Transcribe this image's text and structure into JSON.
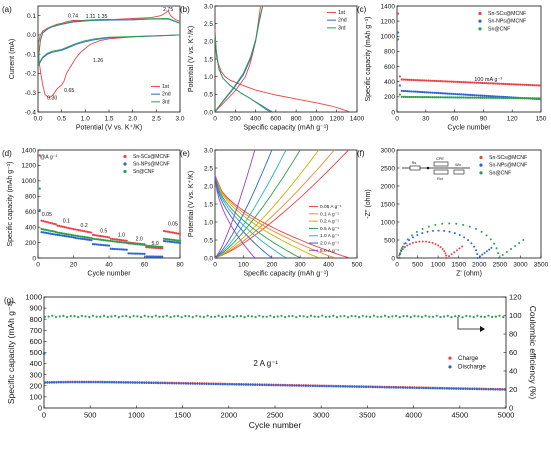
{
  "colors": {
    "red": "#e8434b",
    "blue": "#2f64d6",
    "green": "#2e9e4f",
    "gray": "#555555"
  },
  "chart_data": [
    {
      "panel": "(a)",
      "type": "line",
      "xlabel": "Potential (V vs. K⁺/K)",
      "ylabel": "Current (mA)",
      "xlim": [
        0,
        3
      ],
      "ylim": [
        -0.4,
        0.15
      ],
      "xticks": [
        0,
        0.5,
        1.0,
        1.5,
        2.0,
        2.5,
        3.0
      ],
      "yticks": [
        -0.4,
        -0.3,
        -0.2,
        -0.1,
        0.0,
        0.1
      ],
      "xtick_labels": [
        "0.0",
        "0.5",
        "1.0",
        "1.5",
        "2.0",
        "2.5",
        "3.0"
      ],
      "ytick_labels": [
        "-0.4",
        "-0.3",
        "-0.2",
        "-0.1",
        "0.0",
        "0.1"
      ],
      "legend": {
        "position": "bottom-right",
        "entries": [
          "1st",
          "2nd",
          "3rd"
        ]
      },
      "annotations": [
        {
          "text": "0.30",
          "x": 0.3,
          "y": -0.335
        },
        {
          "text": "0.65",
          "x": 0.66,
          "y": -0.295
        },
        {
          "text": "0.74",
          "x": 0.74,
          "y": 0.09
        },
        {
          "text": "1.11",
          "x": 1.11,
          "y": 0.087
        },
        {
          "text": "1.35",
          "x": 1.36,
          "y": 0.087
        },
        {
          "text": "1.26",
          "x": 1.27,
          "y": -0.14
        },
        {
          "text": "2.75",
          "x": 2.75,
          "y": 0.125
        }
      ],
      "series": [
        {
          "name": "1st",
          "color": "red",
          "x": [
            3.0,
            2.5,
            2.0,
            1.5,
            1.3,
            1.1,
            0.9,
            0.8,
            0.7,
            0.6,
            0.55,
            0.5,
            0.45,
            0.4,
            0.35,
            0.3,
            0.25,
            0.2,
            0.15,
            0.1,
            0.06,
            0.03,
            0.01,
            0.01,
            0.05,
            0.1,
            0.2,
            0.3,
            0.4,
            0.5,
            0.6,
            0.74,
            0.9,
            1.1,
            1.35,
            1.6,
            2.0,
            2.4,
            2.6,
            2.7,
            2.75,
            2.8,
            2.9,
            3.0
          ],
          "y": [
            0.0,
            -0.005,
            -0.01,
            -0.02,
            -0.03,
            -0.05,
            -0.09,
            -0.12,
            -0.16,
            -0.2,
            -0.24,
            -0.26,
            -0.27,
            -0.28,
            -0.3,
            -0.315,
            -0.325,
            -0.32,
            -0.31,
            -0.26,
            -0.2,
            -0.15,
            -0.1,
            -0.04,
            0.0,
            0.02,
            0.035,
            0.045,
            0.055,
            0.06,
            0.068,
            0.075,
            0.075,
            0.078,
            0.08,
            0.08,
            0.085,
            0.09,
            0.1,
            0.115,
            0.125,
            0.1,
            0.08,
            0.07
          ]
        },
        {
          "name": "2nd",
          "color": "blue",
          "x": [
            3.0,
            2.5,
            2.0,
            1.5,
            1.2,
            1.0,
            0.8,
            0.6,
            0.5,
            0.4,
            0.3,
            0.2,
            0.1,
            0.05,
            0.01,
            0.02,
            0.05,
            0.1,
            0.2,
            0.3,
            0.5,
            0.74,
            0.9,
            1.11,
            1.35,
            1.6,
            2.0,
            2.4,
            2.75,
            3.0
          ],
          "y": [
            0.0,
            -0.005,
            -0.01,
            -0.015,
            -0.025,
            -0.035,
            -0.05,
            -0.07,
            -0.08,
            -0.085,
            -0.09,
            -0.1,
            -0.12,
            -0.14,
            -0.16,
            -0.1,
            -0.03,
            0.01,
            0.03,
            0.042,
            0.055,
            0.067,
            0.07,
            0.074,
            0.076,
            0.077,
            0.078,
            0.082,
            0.083,
            0.06
          ]
        },
        {
          "name": "3rd",
          "color": "green",
          "x": [
            3.0,
            2.5,
            2.0,
            1.5,
            1.2,
            1.0,
            0.8,
            0.6,
            0.5,
            0.4,
            0.3,
            0.2,
            0.1,
            0.05,
            0.01,
            0.02,
            0.05,
            0.1,
            0.2,
            0.3,
            0.5,
            0.74,
            0.9,
            1.11,
            1.35,
            1.6,
            2.0,
            2.4,
            2.75,
            3.0
          ],
          "y": [
            0.0,
            -0.004,
            -0.008,
            -0.012,
            -0.02,
            -0.03,
            -0.045,
            -0.065,
            -0.075,
            -0.08,
            -0.085,
            -0.095,
            -0.115,
            -0.135,
            -0.155,
            -0.095,
            -0.025,
            0.012,
            0.032,
            0.044,
            0.057,
            0.069,
            0.072,
            0.076,
            0.078,
            0.079,
            0.08,
            0.084,
            0.085,
            0.062
          ]
        }
      ]
    },
    {
      "panel": "(b)",
      "type": "line",
      "xlabel": "Specific capacity (mAh g⁻¹)",
      "ylabel": "Potential (V vs. K⁺/K)",
      "xlim": [
        0,
        1400
      ],
      "ylim": [
        0,
        3.0
      ],
      "xticks": [
        0,
        200,
        400,
        600,
        800,
        1000,
        1200,
        1400
      ],
      "yticks": [
        0.0,
        0.5,
        1.0,
        1.5,
        2.0,
        2.5,
        3.0
      ],
      "xtick_labels": [
        "0",
        "200",
        "400",
        "600",
        "800",
        "1000",
        "1200",
        "1400"
      ],
      "ytick_labels": [
        "0.0",
        "0.5",
        "1.0",
        "1.5",
        "2.0",
        "2.5",
        "3.0"
      ],
      "legend": {
        "position": "top-right",
        "entries": [
          "1st",
          "2nd",
          "3rd"
        ]
      },
      "series": [
        {
          "name": "1st discharge",
          "color": "red",
          "x": [
            0,
            10,
            30,
            60,
            100,
            150,
            250,
            400,
            600,
            800,
            1000,
            1150,
            1250,
            1300,
            1320
          ],
          "y": [
            2.35,
            1.8,
            1.4,
            1.15,
            1.0,
            0.9,
            0.78,
            0.62,
            0.48,
            0.37,
            0.26,
            0.17,
            0.08,
            0.03,
            0.01
          ]
        },
        {
          "name": "1st charge",
          "color": "red",
          "x": [
            0,
            100,
            200,
            300,
            350,
            400,
            430,
            450
          ],
          "y": [
            0.01,
            0.3,
            0.6,
            1.0,
            1.4,
            2.0,
            2.6,
            3.0
          ]
        },
        {
          "name": "2nd discharge",
          "color": "blue",
          "x": [
            0,
            15,
            40,
            80,
            150,
            250,
            350,
            450,
            520,
            560
          ],
          "y": [
            2.2,
            1.6,
            1.2,
            0.95,
            0.75,
            0.55,
            0.38,
            0.2,
            0.08,
            0.01
          ]
        },
        {
          "name": "2nd charge",
          "color": "blue",
          "x": [
            0,
            80,
            180,
            280,
            350,
            400,
            440,
            470
          ],
          "y": [
            0.01,
            0.3,
            0.65,
            1.05,
            1.5,
            2.0,
            2.6,
            3.0
          ]
        },
        {
          "name": "3rd discharge",
          "color": "green",
          "x": [
            0,
            15,
            40,
            80,
            150,
            250,
            350,
            440,
            500,
            540
          ],
          "y": [
            2.2,
            1.6,
            1.2,
            0.95,
            0.75,
            0.55,
            0.38,
            0.2,
            0.08,
            0.01
          ]
        },
        {
          "name": "3rd charge",
          "color": "green",
          "x": [
            0,
            80,
            180,
            280,
            350,
            400,
            440,
            470
          ],
          "y": [
            0.01,
            0.32,
            0.68,
            1.1,
            1.55,
            2.05,
            2.65,
            3.0
          ]
        }
      ]
    },
    {
      "panel": "(c)",
      "type": "scatter",
      "xlabel": "Cycle number",
      "ylabel": "Specific capacity (mAh g⁻¹)",
      "xlim": [
        0,
        150
      ],
      "ylim": [
        0,
        1400
      ],
      "xticks": [
        0,
        30,
        60,
        90,
        120,
        150
      ],
      "yticks": [
        0,
        200,
        400,
        600,
        800,
        1000,
        1200,
        1400
      ],
      "xtick_labels": [
        "0",
        "30",
        "60",
        "90",
        "120",
        "150"
      ],
      "ytick_labels": [
        "0",
        "200",
        "400",
        "600",
        "800",
        "1000",
        "1200",
        "1400"
      ],
      "legend": {
        "position": "top-right",
        "entries": [
          "Sn-SCs@MCNF",
          "Sn-NPs@MCNF",
          "Sn@CNF"
        ]
      },
      "annotations": [
        {
          "text": "100 mA g⁻¹",
          "x": 95,
          "y": 410
        }
      ],
      "series": [
        {
          "name": "Sn-SCs@MCNF",
          "color": "red",
          "start": [
            1300,
            560,
            470,
            440
          ],
          "plateau_from": 430,
          "plateau_to": 350
        },
        {
          "name": "Sn-NPs@MCNF",
          "color": "blue",
          "start": [
            1050,
            440,
            350,
            300
          ],
          "plateau_from": 280,
          "plateau_to": 170
        },
        {
          "name": "Sn@CNF",
          "color": "green",
          "start": [
            960,
            300,
            230,
            210
          ],
          "plateau_from": 200,
          "plateau_to": 180
        }
      ]
    },
    {
      "panel": "(d)",
      "type": "scatter",
      "xlabel": "Cycle number",
      "ylabel": "Specific capacity (mAh g⁻¹)",
      "xlim": [
        0,
        80
      ],
      "ylim": [
        0,
        1400
      ],
      "xticks": [
        0,
        20,
        40,
        60,
        80
      ],
      "yticks": [
        0,
        200,
        400,
        600,
        800,
        1000,
        1200,
        1400
      ],
      "xtick_labels": [
        "0",
        "20",
        "40",
        "60",
        "80"
      ],
      "ytick_labels": [
        "0",
        "200",
        "400",
        "600",
        "800",
        "1000",
        "1200",
        "1400"
      ],
      "legend": {
        "position": "top-right",
        "entries": [
          "Sn-SCs@MCNF",
          "Sn-NPs@MCNF",
          "Sn@CNF"
        ]
      },
      "annotations": [
        {
          "text": "@A g⁻¹",
          "x": 6,
          "y": 1290
        },
        {
          "text": "0.05",
          "x": 5,
          "y": 545
        },
        {
          "text": "0.1",
          "x": 16,
          "y": 460
        },
        {
          "text": "0.2",
          "x": 26,
          "y": 400
        },
        {
          "text": "0.5",
          "x": 37,
          "y": 330
        },
        {
          "text": "1.0",
          "x": 47,
          "y": 280
        },
        {
          "text": "2.0",
          "x": 57,
          "y": 230
        },
        {
          "text": "5.0",
          "x": 66,
          "y": 170
        },
        {
          "text": "0.05",
          "x": 76,
          "y": 420
        }
      ],
      "segments": [
        0.05,
        0.1,
        0.2,
        0.5,
        1.0,
        2.0,
        5.0,
        0.05
      ],
      "series": [
        {
          "name": "Sn-SCs@MCNF",
          "color": "red",
          "first": 1330,
          "levels": [
            490,
            420,
            370,
            300,
            250,
            200,
            140,
            350
          ]
        },
        {
          "name": "Sn-NPs@MCNF",
          "color": "blue",
          "first": 620,
          "levels": [
            340,
            300,
            260,
            180,
            120,
            60,
            20,
            220
          ]
        },
        {
          "name": "Sn@CNF",
          "color": "green",
          "first": 900,
          "levels": [
            380,
            330,
            290,
            250,
            220,
            190,
            160,
            250
          ]
        }
      ]
    },
    {
      "panel": "(e)",
      "type": "line",
      "xlabel": "Specific capacity (mAh g⁻¹)",
      "ylabel": "Potential (V vs. K⁺/K)",
      "xlim": [
        0,
        500
      ],
      "ylim": [
        0,
        3.0
      ],
      "xticks": [
        0,
        100,
        200,
        300,
        400,
        500
      ],
      "yticks": [
        0.0,
        0.5,
        1.0,
        1.5,
        2.0,
        2.5,
        3.0
      ],
      "xtick_labels": [
        "0",
        "100",
        "200",
        "300",
        "400",
        "500"
      ],
      "ytick_labels": [
        "0.0",
        "0.5",
        "1.0",
        "1.5",
        "2.0",
        "2.5",
        "3.0"
      ],
      "legend": {
        "position": "right",
        "entries": [
          "0.05 A g⁻¹",
          "0.1 A g⁻¹",
          "0.2 A g⁻¹",
          "0.5 A g⁻¹",
          "1.0 A g⁻¹",
          "2.0 A g⁻¹",
          "5.0 A g⁻¹"
        ]
      },
      "series": [
        {
          "name": "0.05 A g⁻¹",
          "color": "#e8434b",
          "capacity": 470
        },
        {
          "name": "0.1 A g⁻¹",
          "color": "#f08a2c",
          "capacity": 420
        },
        {
          "name": "0.2 A g⁻¹",
          "color": "#c8b400",
          "capacity": 365
        },
        {
          "name": "0.5 A g⁻¹",
          "color": "#2e9e4f",
          "capacity": 300
        },
        {
          "name": "1.0 A g⁻¹",
          "color": "#27b4c6",
          "capacity": 250
        },
        {
          "name": "2.0 A g⁻¹",
          "color": "#2f64d6",
          "capacity": 200
        },
        {
          "name": "5.0 A g⁻¹",
          "color": "#9b3fc9",
          "capacity": 140
        }
      ]
    },
    {
      "panel": "(f)",
      "type": "scatter",
      "xlabel": "Z' (ohm)",
      "ylabel": "-Z'' (ohm)",
      "xlim": [
        0,
        3500
      ],
      "ylim": [
        0,
        3000
      ],
      "xticks": [
        0,
        500,
        1000,
        1500,
        2000,
        2500,
        3000,
        3500
      ],
      "yticks": [
        0,
        500,
        1000,
        1500,
        2000,
        2500,
        3000
      ],
      "xtick_labels": [
        "0",
        "500",
        "1000",
        "1500",
        "2000",
        "2500",
        "3000",
        "3500"
      ],
      "ytick_labels": [
        "0",
        "500",
        "1000",
        "1500",
        "2000",
        "2500",
        "3000"
      ],
      "legend": {
        "position": "top-right",
        "entries": [
          "Sn-SCs@MCNF",
          "Sn-NPs@MCNF",
          "Sn@CNF"
        ]
      },
      "circuit_labels": [
        "Rs",
        "CPE",
        "Rct",
        "Wo"
      ],
      "series": [
        {
          "name": "Sn-SCs@MCNF",
          "color": "red",
          "r0": 50,
          "rct": 1150,
          "tail": 320
        },
        {
          "name": "Sn-NPs@MCNF",
          "color": "blue",
          "r0": 60,
          "rct": 1900,
          "tail": 280
        },
        {
          "name": "Sn@CNF",
          "color": "green",
          "r0": 70,
          "rct": 2400,
          "tail": 500
        }
      ]
    },
    {
      "panel": "(g)",
      "type": "scatter",
      "xlabel": "Cycle number",
      "ylabel": "Specific capacity (mAh g⁻¹)",
      "ylabel_right": "Coulombic efficiency (%)",
      "xlim": [
        0,
        5000
      ],
      "ylim": [
        0,
        1000
      ],
      "ylim_right": [
        0,
        120
      ],
      "xticks": [
        0,
        500,
        1000,
        1500,
        2000,
        2500,
        3000,
        3500,
        4000,
        4500,
        5000
      ],
      "yticks": [
        0,
        100,
        200,
        300,
        400,
        500,
        600,
        700,
        800,
        900,
        1000
      ],
      "yticks_right": [
        0,
        20,
        40,
        60,
        80,
        100,
        120
      ],
      "xtick_labels": [
        "0",
        "500",
        "1000",
        "1500",
        "2000",
        "2500",
        "3000",
        "3500",
        "4000",
        "4500",
        "5000"
      ],
      "ytick_labels": [
        "0",
        "100",
        "200",
        "300",
        "400",
        "500",
        "600",
        "700",
        "800",
        "900",
        "1000"
      ],
      "ytick_labels_right": [
        "0",
        "20",
        "40",
        "60",
        "80",
        "100",
        "120"
      ],
      "legend": {
        "position": "right",
        "entries": [
          "Charge",
          "Discharge"
        ]
      },
      "annotations": [
        {
          "text": "2 A g⁻¹",
          "x": 2400,
          "y": 380
        }
      ],
      "series": [
        {
          "name": "Charge",
          "color": "red",
          "first": 490,
          "start": 250,
          "end": 170
        },
        {
          "name": "Discharge",
          "color": "blue",
          "first": 490,
          "start": 245,
          "end": 165
        },
        {
          "name": "Coulombic efficiency",
          "color": "green",
          "axis": "right",
          "value": 99
        }
      ]
    }
  ],
  "panel_labels": [
    "(a)",
    "(b)",
    "(c)",
    "(d)",
    "(e)",
    "(f)",
    "(g)"
  ]
}
